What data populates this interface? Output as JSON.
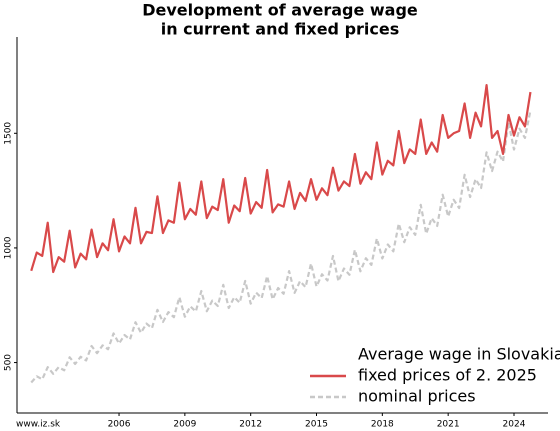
{
  "chart_data": {
    "type": "line",
    "title_lines": [
      "Development of average wage",
      "in current and fixed prices"
    ],
    "legend_title": "Average wage in Slovakia",
    "legend_position": "lower right",
    "source": "www.iz.sk",
    "x": [
      2002,
      2002.25,
      2002.5,
      2002.75,
      2003,
      2003.25,
      2003.5,
      2003.75,
      2004,
      2004.25,
      2004.5,
      2004.75,
      2005,
      2005.25,
      2005.5,
      2005.75,
      2006,
      2006.25,
      2006.5,
      2006.75,
      2007,
      2007.25,
      2007.5,
      2007.75,
      2008,
      2008.25,
      2008.5,
      2008.75,
      2009,
      2009.25,
      2009.5,
      2009.75,
      2010,
      2010.25,
      2010.5,
      2010.75,
      2011,
      2011.25,
      2011.5,
      2011.75,
      2012,
      2012.25,
      2012.5,
      2012.75,
      2013,
      2013.25,
      2013.5,
      2013.75,
      2014,
      2014.25,
      2014.5,
      2014.75,
      2015,
      2015.25,
      2015.5,
      2015.75,
      2016,
      2016.25,
      2016.5,
      2016.75,
      2017,
      2017.25,
      2017.5,
      2017.75,
      2018,
      2018.25,
      2018.5,
      2018.75,
      2019,
      2019.25,
      2019.5,
      2019.75,
      2020,
      2020.25,
      2020.5,
      2020.75,
      2021,
      2021.25,
      2021.5,
      2021.75,
      2022,
      2022.25,
      2022.5,
      2022.75,
      2023,
      2023.25,
      2023.5,
      2023.75,
      2024,
      2024.25,
      2024.5,
      2024.75
    ],
    "series": [
      {
        "name": "fixed prices of 2. 2025",
        "color": "#d9494a",
        "dash": false,
        "values": [
          900,
          980,
          965,
          1110,
          895,
          960,
          940,
          1075,
          915,
          975,
          950,
          1080,
          960,
          1020,
          990,
          1125,
          985,
          1050,
          1020,
          1175,
          1020,
          1070,
          1065,
          1225,
          1065,
          1120,
          1110,
          1285,
          1125,
          1170,
          1145,
          1290,
          1130,
          1180,
          1165,
          1300,
          1110,
          1185,
          1160,
          1305,
          1150,
          1200,
          1175,
          1340,
          1155,
          1190,
          1180,
          1290,
          1170,
          1240,
          1205,
          1300,
          1210,
          1260,
          1230,
          1350,
          1250,
          1290,
          1270,
          1410,
          1280,
          1330,
          1300,
          1460,
          1320,
          1380,
          1360,
          1510,
          1370,
          1430,
          1410,
          1560,
          1410,
          1460,
          1420,
          1580,
          1480,
          1500,
          1510,
          1630,
          1480,
          1590,
          1530,
          1710,
          1480,
          1510,
          1410,
          1580,
          1490,
          1570,
          1530,
          1680
        ]
      },
      {
        "name": "nominal prices",
        "color": "#c8c8c8",
        "dash": true,
        "values": [
          413,
          440,
          427,
          480,
          451,
          480,
          466,
          523,
          494,
          525,
          509,
          572,
          541,
          575,
          558,
          627,
          583,
          620,
          601,
          676,
          630,
          670,
          650,
          730,
          677,
          720,
          698,
          785,
          700,
          745,
          723,
          812,
          724,
          770,
          747,
          839,
          738,
          785,
          761,
          856,
          757,
          805,
          781,
          877,
          776,
          825,
          800,
          899,
          804,
          855,
          829,
          932,
          832,
          885,
          858,
          965,
          855,
          910,
          883,
          992,
          898,
          955,
          926,
          1041,
          954,
          1015,
          985,
          1106,
          1025,
          1090,
          1057,
          1188,
          1062,
          1130,
          1096,
          1232,
          1137,
          1210,
          1174,
          1319,
          1222,
          1300,
          1261,
          1417,
          1335,
          1420,
          1377,
          1548,
          1429,
          1520,
          1480,
          1600
        ]
      }
    ],
    "xlim": [
      2001.35,
      2025.55
    ],
    "xticks": [
      2006,
      2009,
      2012,
      2015,
      2018,
      2021,
      2024
    ],
    "ylim": [
      280,
      1920
    ],
    "yticks": [
      500,
      1000,
      1500
    ],
    "grid": false
  }
}
